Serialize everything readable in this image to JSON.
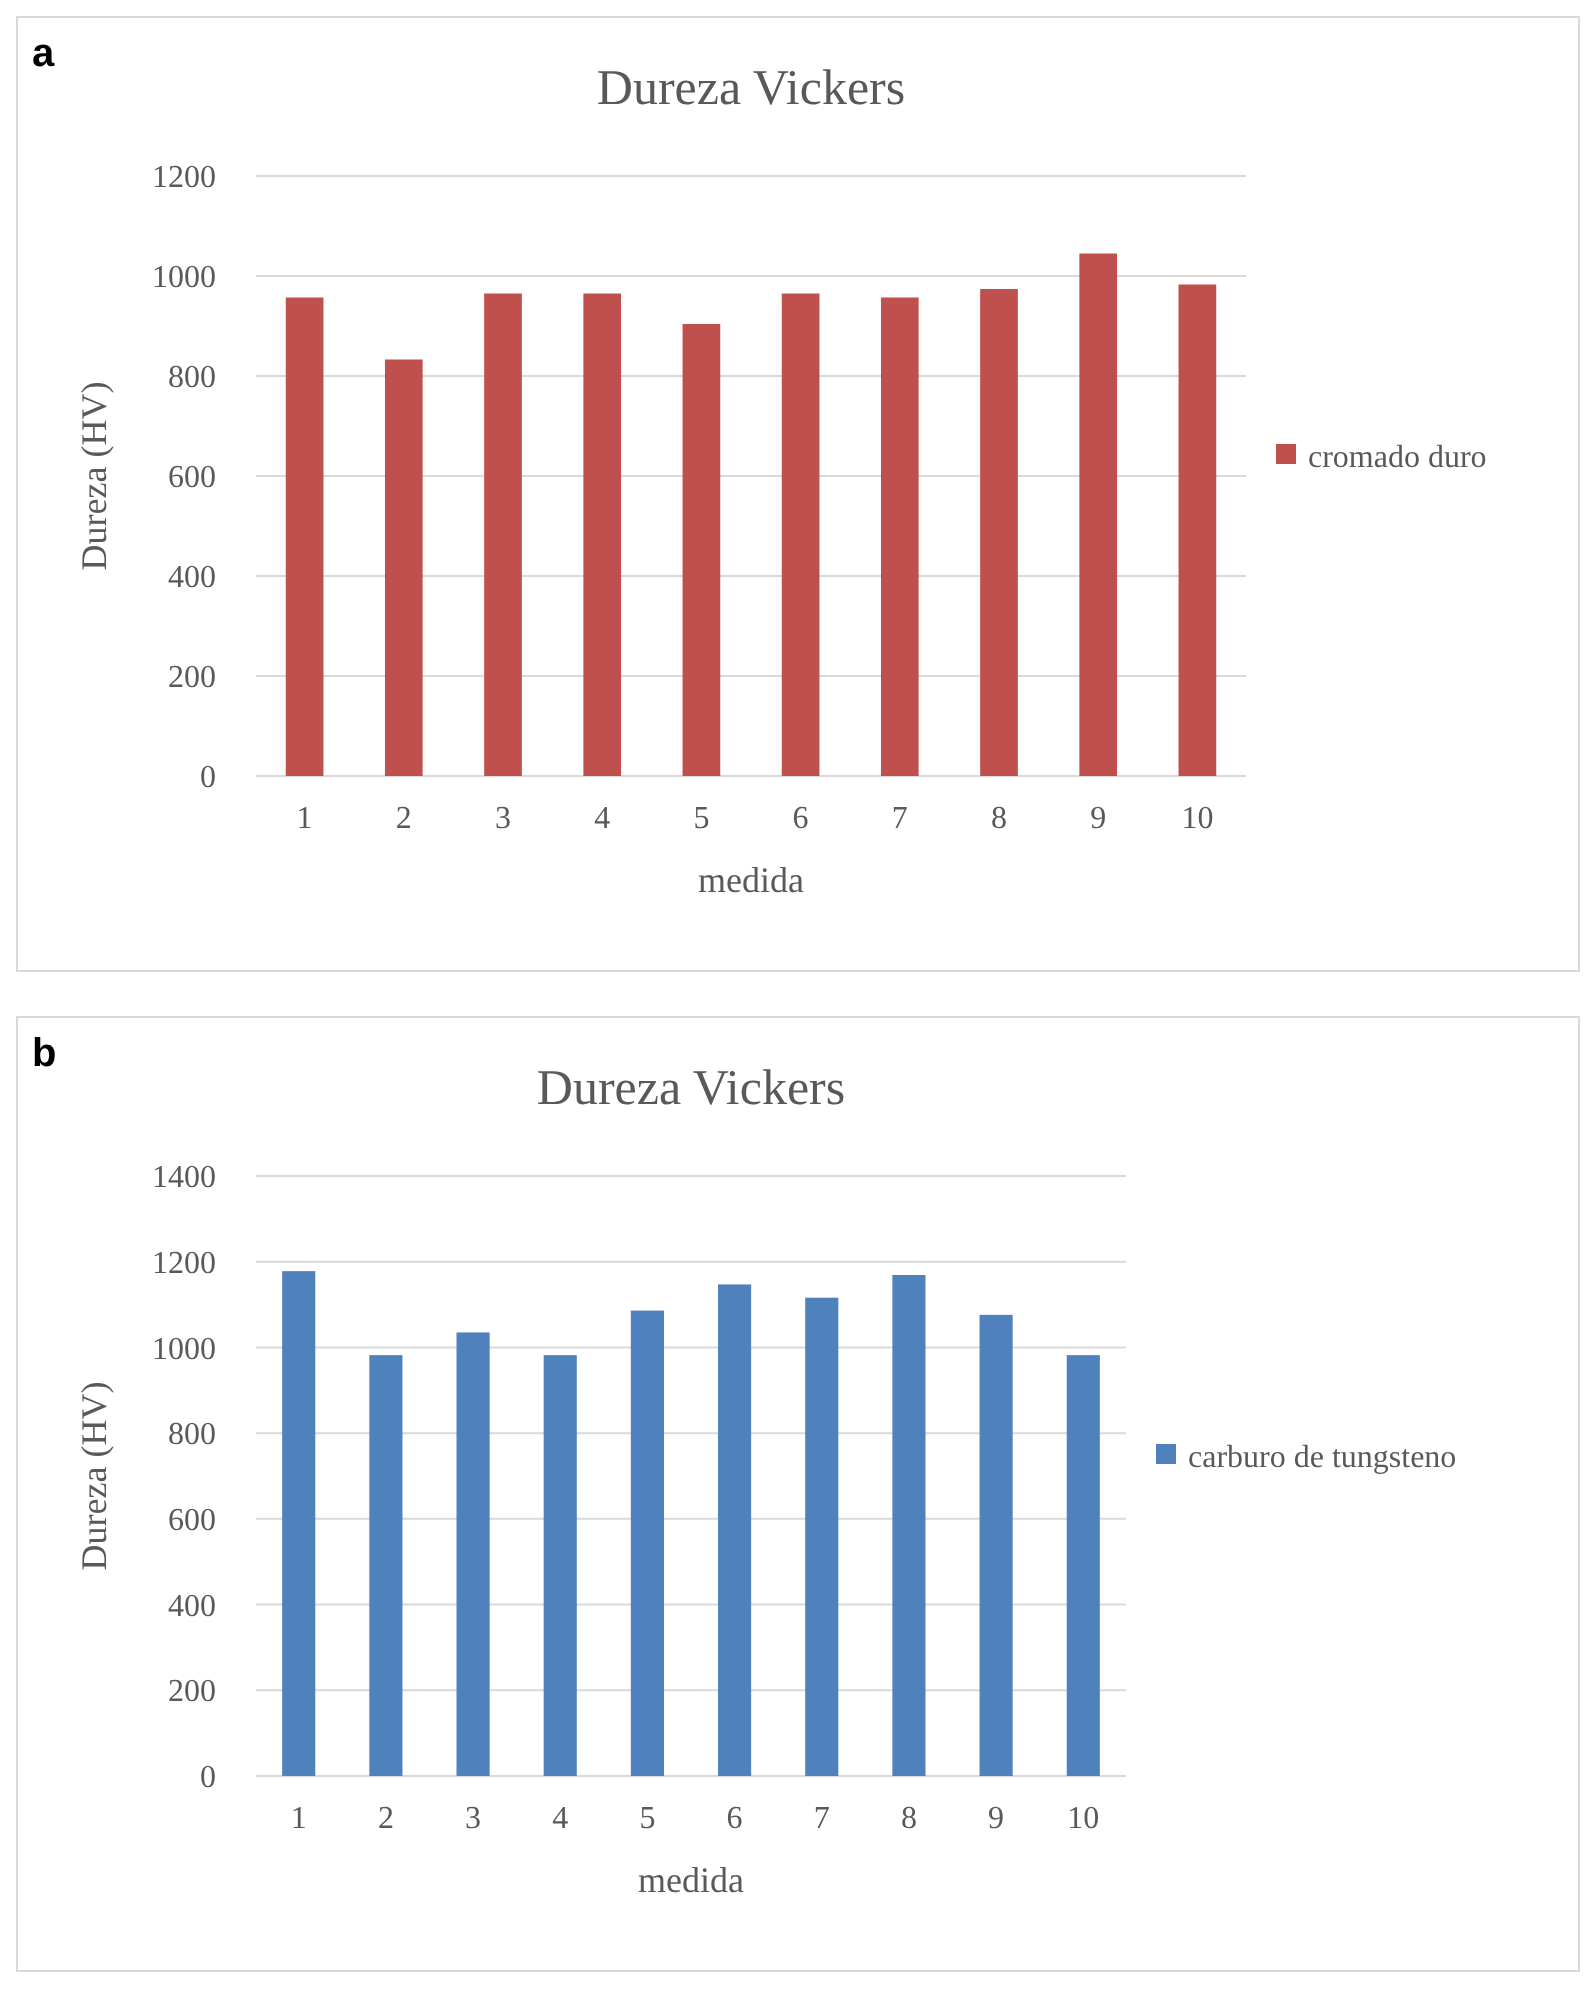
{
  "chart_data": [
    {
      "type": "bar",
      "title": "Dureza Vickers",
      "xlabel": "medida",
      "ylabel": "Dureza (HV)",
      "annotations": [
        "a"
      ],
      "categories": [
        "1",
        "2",
        "3",
        "4",
        "5",
        "6",
        "7",
        "8",
        "9",
        "10"
      ],
      "series": [
        {
          "name": "cromado duro",
          "color": "#c0504d",
          "values": [
            957,
            833,
            965,
            965,
            904,
            965,
            957,
            974,
            1045,
            983
          ]
        }
      ],
      "ylim": [
        0,
        1200
      ],
      "yticks": [
        0,
        200,
        400,
        600,
        800,
        1000,
        1200
      ],
      "grid": "y",
      "legend": "right"
    },
    {
      "type": "bar",
      "title": "Dureza Vickers",
      "xlabel": "medida",
      "ylabel": "Dureza (HV)",
      "annotations": [
        "b"
      ],
      "categories": [
        "1",
        "2",
        "3",
        "4",
        "5",
        "6",
        "7",
        "8",
        "9",
        "10"
      ],
      "series": [
        {
          "name": "carburo de tungsteno",
          "color": "#4f81bd",
          "values": [
            1178,
            982,
            1035,
            982,
            1086,
            1147,
            1116,
            1169,
            1076,
            982
          ]
        }
      ],
      "ylim": [
        0,
        1400
      ],
      "yticks": [
        0,
        200,
        400,
        600,
        800,
        1000,
        1200,
        1400
      ],
      "grid": "y",
      "legend": "right"
    }
  ]
}
